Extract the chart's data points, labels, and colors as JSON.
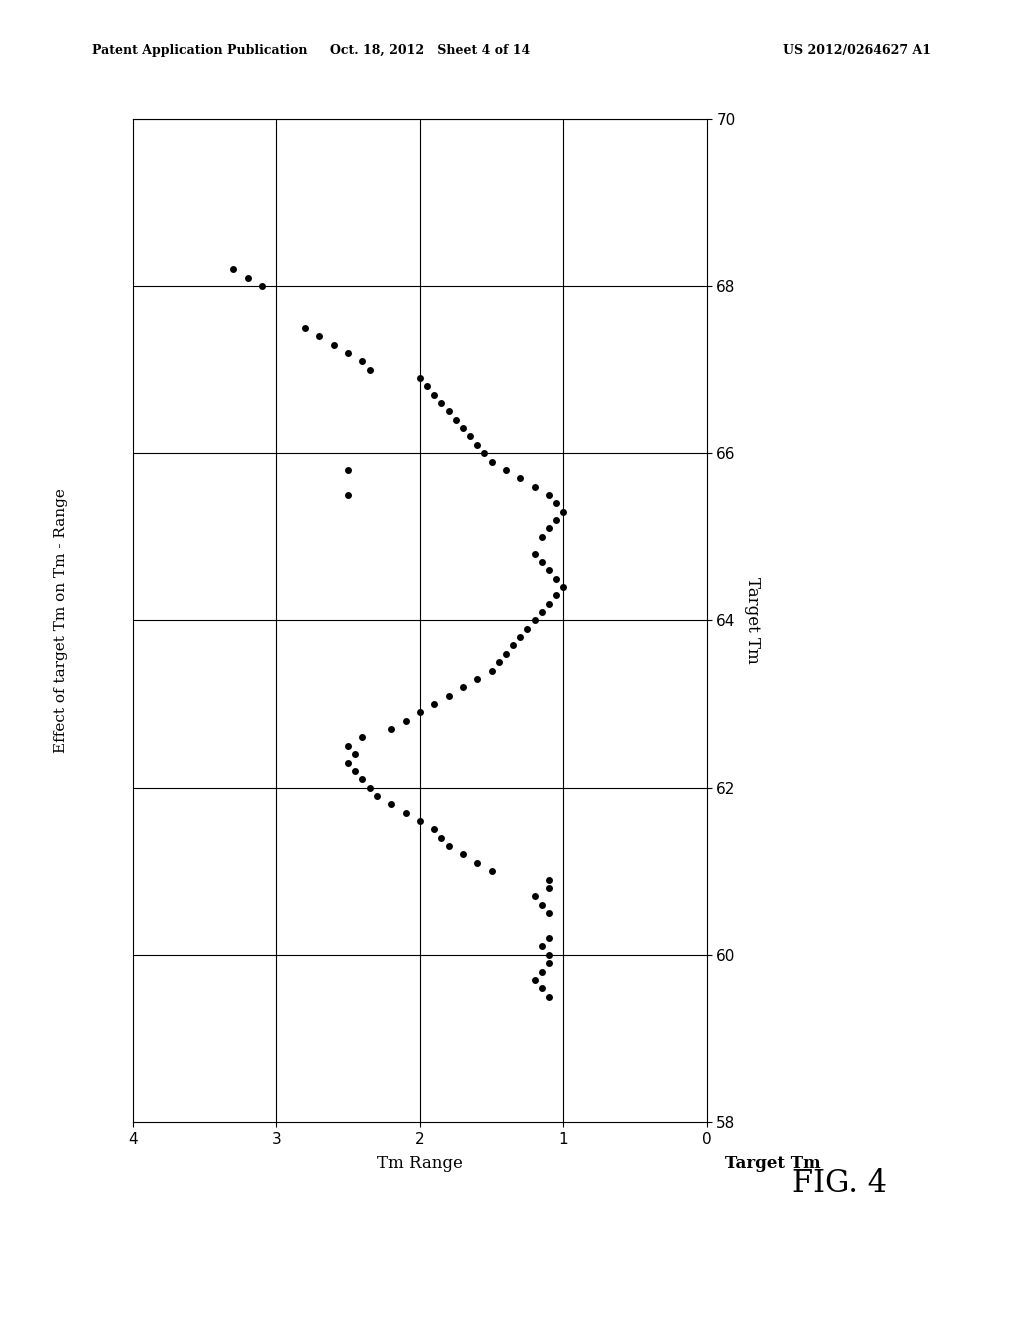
{
  "title": "Effect of target Tm on Tm - Range",
  "xlabel_rotated": "Target Tm",
  "ylabel_rotated": "Tm Range",
  "fig_label": "FIG. 4",
  "header_left": "Patent Application Publication",
  "header_center": "Oct. 18, 2012   Sheet 4 of 14",
  "header_right": "US 2012/0264627 A1",
  "x_axis_range": [
    58,
    70
  ],
  "y_axis_range": [
    0.0,
    4.0
  ],
  "x_ticks": [
    58,
    60,
    62,
    64,
    66,
    68,
    70
  ],
  "y_ticks": [
    0.0,
    1.0,
    2.0,
    3.0,
    4.0
  ],
  "data_target_tm": [
    59.5,
    59.6,
    59.7,
    59.8,
    59.9,
    60.0,
    60.1,
    60.2,
    60.5,
    60.6,
    60.7,
    60.8,
    60.9,
    61.0,
    61.1,
    61.2,
    61.3,
    61.4,
    61.5,
    61.6,
    61.7,
    61.8,
    61.9,
    62.0,
    62.1,
    62.2,
    62.3,
    62.4,
    62.5,
    62.6,
    62.7,
    62.8,
    62.9,
    63.0,
    63.1,
    63.2,
    63.3,
    63.4,
    63.5,
    63.6,
    63.7,
    63.8,
    63.9,
    64.0,
    64.1,
    64.2,
    64.3,
    64.4,
    64.5,
    64.6,
    64.7,
    64.8,
    65.0,
    65.1,
    65.2,
    65.3,
    65.4,
    65.5,
    65.6,
    65.7,
    65.8,
    65.9,
    66.0,
    66.1,
    66.2,
    66.3,
    66.4,
    66.5,
    66.6,
    66.7,
    66.8,
    66.9,
    67.0,
    67.1,
    67.2,
    67.3,
    67.4,
    67.5,
    68.0,
    68.1,
    68.2
  ],
  "data_tm_range": [
    1.1,
    1.15,
    1.2,
    1.15,
    1.1,
    1.1,
    1.15,
    1.1,
    1.1,
    1.15,
    1.2,
    1.1,
    1.1,
    1.5,
    1.6,
    1.7,
    1.8,
    1.85,
    1.9,
    2.0,
    2.1,
    2.2,
    2.3,
    2.35,
    2.4,
    2.45,
    2.5,
    2.45,
    2.5,
    2.4,
    2.2,
    2.1,
    2.0,
    1.9,
    1.8,
    1.7,
    1.6,
    1.5,
    1.45,
    1.4,
    1.35,
    1.3,
    1.25,
    1.2,
    1.15,
    1.1,
    1.05,
    1.0,
    1.05,
    1.1,
    1.15,
    1.2,
    1.15,
    1.1,
    1.05,
    1.0,
    1.05,
    1.1,
    1.2,
    1.3,
    1.4,
    1.5,
    1.55,
    1.6,
    1.65,
    1.7,
    1.75,
    1.8,
    1.85,
    1.9,
    1.95,
    2.0,
    2.35,
    2.4,
    2.5,
    2.6,
    2.7,
    2.8,
    3.1,
    3.2,
    3.3
  ],
  "isolated_pts_tm": [
    65.5,
    65.8
  ],
  "isolated_pts_range": [
    2.5,
    2.5
  ],
  "scatter_color": "#000000",
  "background_color": "#ffffff",
  "marker_size": 25,
  "grid_color": "#000000",
  "grid_lw": 0.8
}
